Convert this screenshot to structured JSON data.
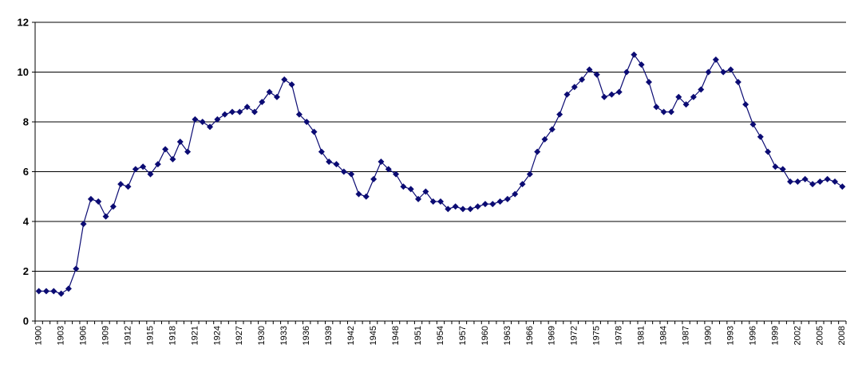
{
  "chart_data": {
    "type": "line",
    "title": "",
    "xlabel": "",
    "ylabel": "",
    "ylim": [
      0,
      12
    ],
    "yticks": [
      0,
      2,
      4,
      6,
      8,
      10,
      12
    ],
    "xticks": [
      1900,
      1903,
      1906,
      1909,
      1912,
      1915,
      1918,
      1921,
      1924,
      1927,
      1930,
      1933,
      1936,
      1939,
      1942,
      1945,
      1948,
      1951,
      1954,
      1957,
      1960,
      1963,
      1966,
      1969,
      1972,
      1975,
      1978,
      1981,
      1984,
      1987,
      1990,
      1993,
      1996,
      1999,
      2002,
      2005,
      2008
    ],
    "grid": true,
    "legend": "none",
    "series_color": "#0b0b73",
    "marker": "diamond",
    "x": [
      1900,
      1901,
      1902,
      1903,
      1904,
      1905,
      1906,
      1907,
      1908,
      1909,
      1910,
      1911,
      1912,
      1913,
      1914,
      1915,
      1916,
      1917,
      1918,
      1919,
      1920,
      1921,
      1922,
      1923,
      1924,
      1925,
      1926,
      1927,
      1928,
      1929,
      1930,
      1931,
      1932,
      1933,
      1934,
      1935,
      1936,
      1937,
      1938,
      1939,
      1940,
      1941,
      1942,
      1943,
      1944,
      1945,
      1946,
      1947,
      1948,
      1949,
      1950,
      1951,
      1952,
      1953,
      1954,
      1955,
      1956,
      1957,
      1958,
      1959,
      1960,
      1961,
      1962,
      1963,
      1964,
      1965,
      1966,
      1967,
      1968,
      1969,
      1970,
      1971,
      1972,
      1973,
      1974,
      1975,
      1976,
      1977,
      1978,
      1979,
      1980,
      1981,
      1982,
      1983,
      1984,
      1985,
      1986,
      1987,
      1988,
      1989,
      1990,
      1991,
      1992,
      1993,
      1994,
      1995,
      1996,
      1997,
      1998,
      1999,
      2000,
      2001,
      2002,
      2003,
      2004,
      2005,
      2006,
      2007,
      2008
    ],
    "values": [
      1.2,
      1.2,
      1.2,
      1.1,
      1.3,
      2.1,
      3.9,
      4.9,
      4.8,
      4.2,
      4.6,
      5.5,
      5.4,
      6.1,
      6.2,
      5.9,
      6.3,
      6.9,
      6.5,
      7.2,
      6.8,
      8.1,
      8.0,
      7.8,
      8.1,
      8.3,
      8.4,
      8.4,
      8.6,
      8.4,
      8.8,
      9.2,
      9.0,
      9.7,
      9.5,
      8.3,
      8.0,
      7.6,
      6.8,
      6.4,
      6.3,
      6.0,
      5.9,
      5.1,
      5.0,
      5.7,
      6.4,
      6.1,
      5.9,
      5.4,
      5.3,
      4.9,
      5.2,
      4.8,
      4.8,
      4.5,
      4.6,
      4.5,
      4.5,
      4.6,
      4.7,
      4.7,
      4.8,
      4.9,
      5.1,
      5.5,
      5.9,
      6.8,
      7.3,
      7.7,
      8.3,
      9.1,
      9.4,
      9.7,
      10.1,
      9.9,
      9.0,
      9.1,
      9.2,
      10.0,
      10.7,
      10.3,
      9.6,
      8.6,
      8.4,
      8.4,
      9.0,
      8.7,
      9.0,
      9.3,
      10.0,
      10.5,
      10.0,
      10.1,
      9.6,
      8.7,
      7.9,
      7.4,
      6.8,
      6.2,
      6.1,
      5.6,
      5.6,
      5.7,
      5.5,
      5.6,
      5.7,
      5.6,
      5.4
    ]
  }
}
